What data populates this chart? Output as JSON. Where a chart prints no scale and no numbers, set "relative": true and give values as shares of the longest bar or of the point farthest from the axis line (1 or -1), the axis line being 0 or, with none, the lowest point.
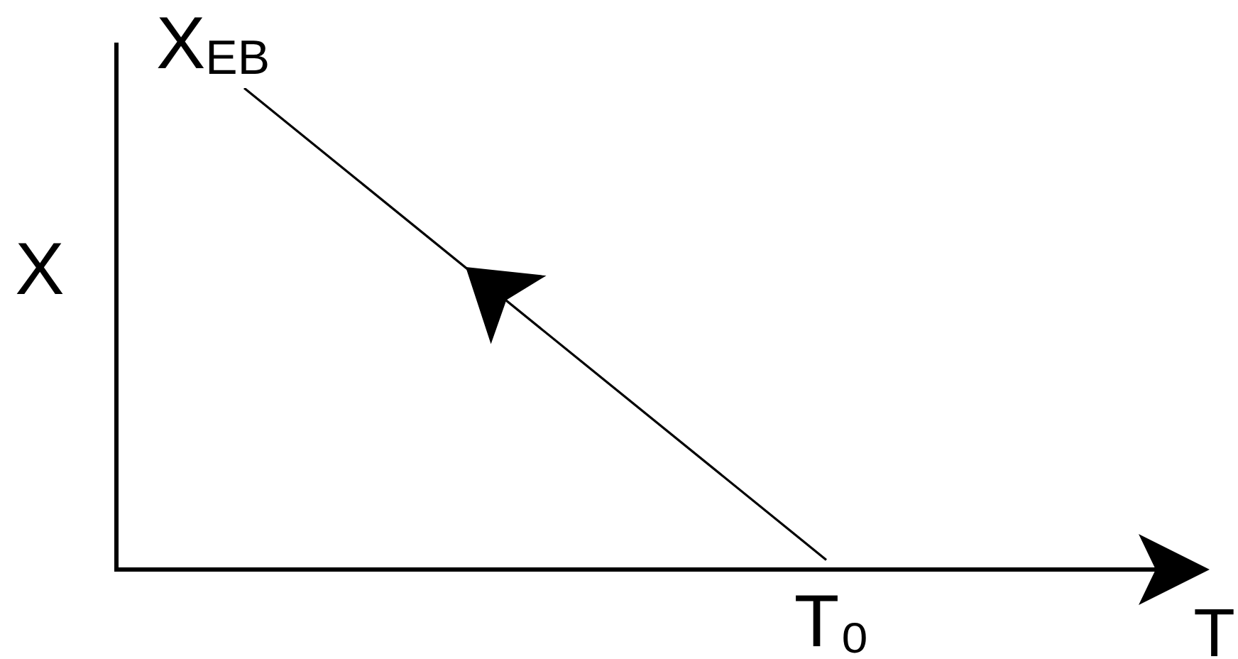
{
  "chart_data": {
    "type": "line",
    "xlabel": "T",
    "ylabel": "X",
    "categories": [
      null,
      null
    ],
    "values": [
      1,
      0.02
    ],
    "color": "#000000",
    "relative": true,
    "annotations": [
      "X$_{EB}$",
      {
        "text": "T₀",
        "y": 0.02
      }
    ]
  }
}
